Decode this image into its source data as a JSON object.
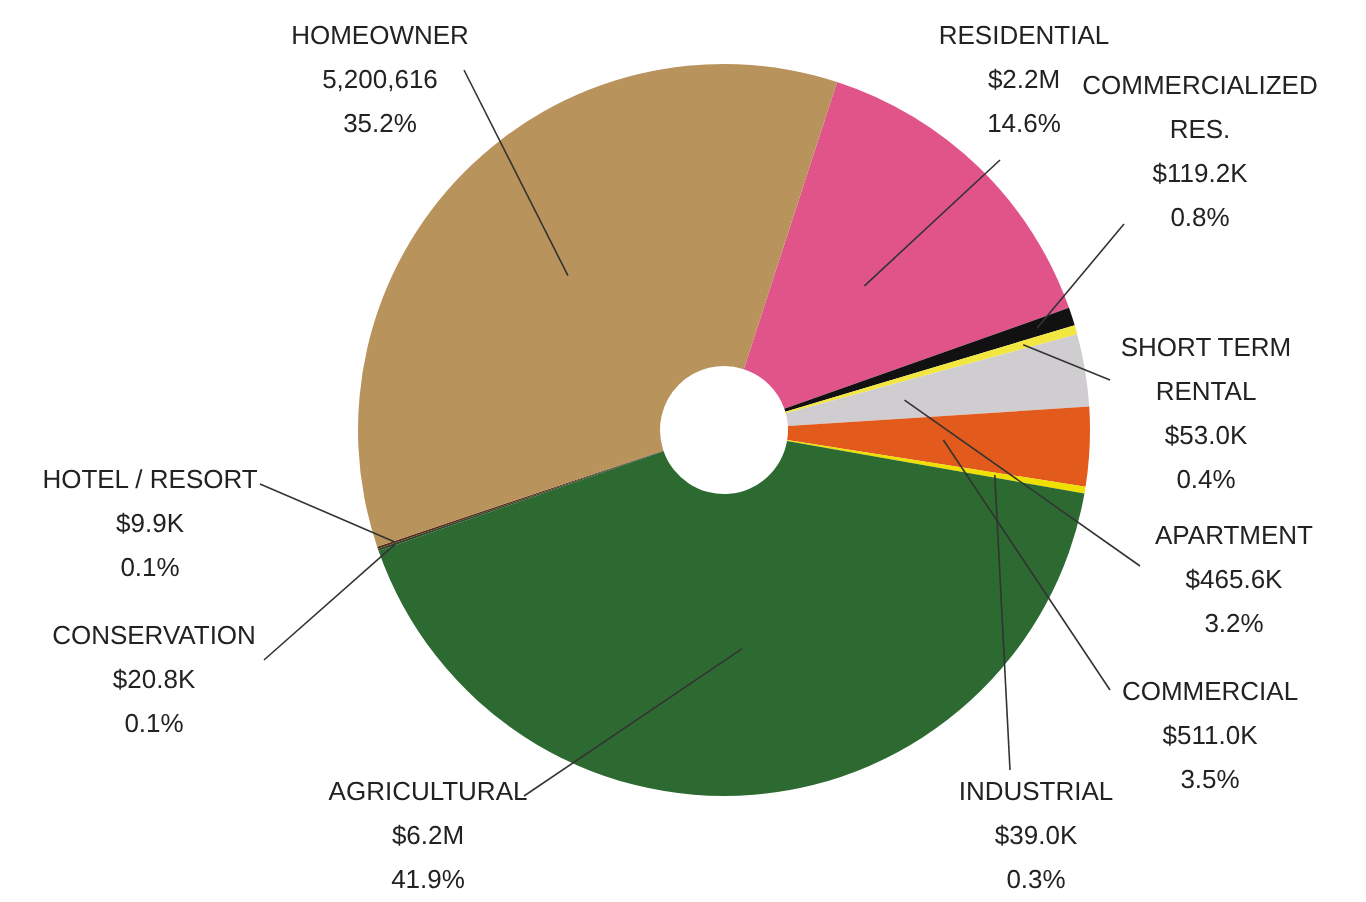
{
  "chart_data": {
    "type": "donut",
    "categories": [
      "RESIDENTIAL",
      "COMMERCIALIZED RES.",
      "SHORT TERM RENTAL",
      "APARTMENT",
      "COMMERCIAL",
      "INDUSTRIAL",
      "AGRICULTURAL",
      "CONSERVATION",
      "HOTEL / RESORT",
      "HOMEOWNER"
    ],
    "values": [
      14.6,
      0.8,
      0.4,
      3.2,
      3.5,
      0.3,
      41.9,
      0.1,
      0.1,
      35.2
    ],
    "colors": [
      "#e0548a",
      "#111111",
      "#f2e640",
      "#cfcdd0",
      "#e25a1c",
      "#f0e000",
      "#2c6a32",
      "#2f4a2a",
      "#5a2e1a",
      "#b8935c"
    ],
    "value_labels": [
      "$2.2M\n14.6%",
      "$119.2K\n0.8%",
      "$53.0K\n0.4%",
      "$465.6K\n3.2%",
      "$511.0K\n3.5%",
      "$39.0K\n0.3%",
      "$6.2M\n41.9%",
      "$20.8K\n0.1%",
      "$9.9K\n0.1%",
      "5,200,616\n35.2%"
    ]
  }
}
